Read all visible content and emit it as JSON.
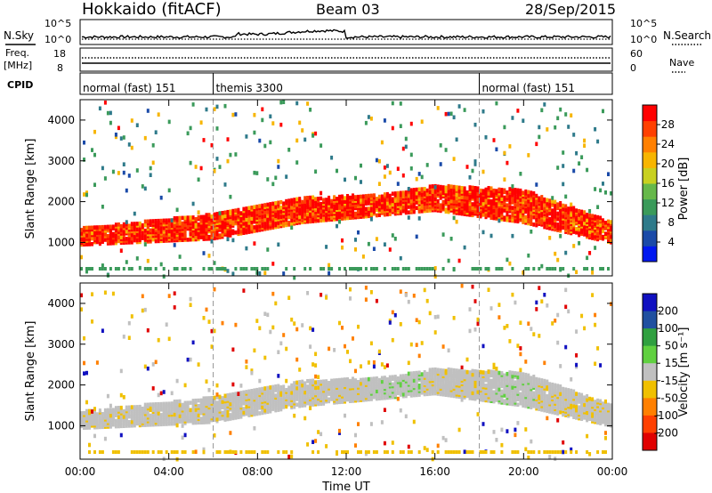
{
  "header": {
    "station": "Hokkaido (fitACF)",
    "beam": "Beam 03",
    "date": "28/Sep/2015"
  },
  "noise_panel": {
    "left_label": "N.Sky",
    "right_label": "N.Search",
    "left_ticks": [
      "10^5",
      "10^0"
    ],
    "right_ticks": [
      "10^5",
      "10^0"
    ]
  },
  "freq_panel": {
    "left_label_1": "Freq.",
    "left_label_2": "[MHz]",
    "right_label": "Nave",
    "left_ticks": [
      "18",
      "8"
    ],
    "right_ticks": [
      "60",
      "0"
    ]
  },
  "cpid_panel": {
    "label": "CPID",
    "segments": [
      {
        "start_hour": 0,
        "end_hour": 6,
        "label": "normal (fast) 151"
      },
      {
        "start_hour": 6,
        "end_hour": 18,
        "label": "themis 3300"
      },
      {
        "start_hour": 18,
        "end_hour": 24,
        "label": "normal (fast) 151"
      }
    ]
  },
  "x_axis": {
    "label": "Time UT",
    "ticks": [
      "00:00",
      "04:00",
      "08:00",
      "12:00",
      "16:00",
      "20:00",
      "00:00"
    ]
  },
  "power_panel": {
    "ylabel": "Slant Range [km]",
    "yticks": [
      "1000",
      "2000",
      "3000",
      "4000"
    ],
    "colorbar_label": "Power [dB]",
    "colorbar_ticks": [
      "4",
      "8",
      "12",
      "16",
      "20",
      "24",
      "28"
    ],
    "colorbar_colors": [
      "#0018f0",
      "#1a4aa8",
      "#2e7a8a",
      "#3a9a5a",
      "#66b84a",
      "#c8d020",
      "#f7b500",
      "#ff8000",
      "#ff4000",
      "#ff0000"
    ]
  },
  "velocity_panel": {
    "ylabel": "Slant Range [km]",
    "yticks": [
      "1000",
      "2000",
      "3000",
      "4000"
    ],
    "colorbar_label": "Velocity [m s⁻¹]",
    "colorbar_ticks": [
      "200",
      "100",
      "50",
      "15",
      "-15",
      "-50",
      "-100",
      "-200"
    ],
    "colorbar_colors": [
      "#1010c0",
      "#2050a0",
      "#30a040",
      "#60d040",
      "#c0c0c0",
      "#f0c000",
      "#ff8000",
      "#ff4000",
      "#e00000"
    ]
  },
  "chart_data": [
    {
      "type": "heatmap",
      "title": "Power",
      "xlabel": "Time UT",
      "ylabel": "Slant Range [km]",
      "xlim": [
        0,
        24
      ],
      "ylim": [
        180,
        4500
      ],
      "zlabel": "Power [dB]",
      "zticks": [
        4,
        8,
        12,
        16,
        20,
        24,
        28
      ],
      "main_echo_band_km": [
        {
          "hour": 0,
          "range": [
            950,
            1350
          ]
        },
        {
          "hour": 6,
          "range": [
            1100,
            1700
          ]
        },
        {
          "hour": 10,
          "range": [
            1500,
            2100
          ]
        },
        {
          "hour": 14,
          "range": [
            1700,
            2200
          ]
        },
        {
          "hour": 16,
          "range": [
            1800,
            2400
          ]
        },
        {
          "hour": 20,
          "range": [
            1500,
            2300
          ]
        },
        {
          "hour": 24,
          "range": [
            1000,
            1500
          ]
        }
      ]
    },
    {
      "type": "heatmap",
      "title": "Velocity",
      "xlabel": "Time UT",
      "ylabel": "Slant Range [km]",
      "xlim": [
        0,
        24
      ],
      "ylim": [
        180,
        4500
      ],
      "zlabel": "Velocity [m s⁻¹]",
      "zticks": [
        200,
        100,
        50,
        15,
        -15,
        -50,
        -100,
        -200
      ]
    }
  ]
}
